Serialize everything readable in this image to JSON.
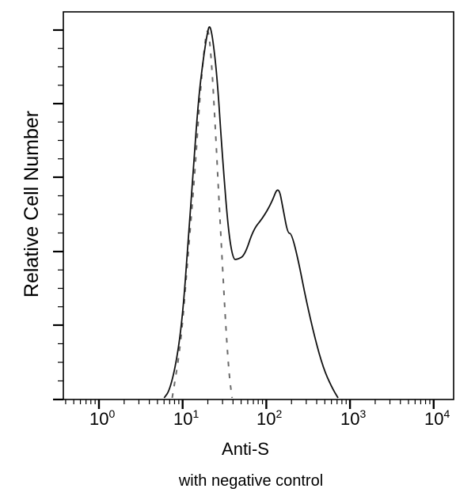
{
  "chart_data": {
    "type": "line",
    "title": "",
    "subtitle": "with negative control",
    "xlabel": "Anti-S",
    "ylabel": "Relative Cell Number",
    "x_scale": "log",
    "xlim": [
      0.4,
      12000
    ],
    "x_ticks": [
      {
        "base": "10",
        "exp": "0",
        "value": 1
      },
      {
        "base": "10",
        "exp": "1",
        "value": 10
      },
      {
        "base": "10",
        "exp": "2",
        "value": 100
      },
      {
        "base": "10",
        "exp": "3",
        "value": 1000
      },
      {
        "base": "10",
        "exp": "4",
        "value": 10000
      }
    ],
    "y_ticks_labeled": false,
    "ylim": [
      0,
      100
    ],
    "grid": false,
    "legend": null,
    "series": [
      {
        "name": "Anti-S",
        "style": "solid",
        "color": "#000000",
        "points": [
          [
            6.0,
            0
          ],
          [
            7.0,
            2
          ],
          [
            8.5,
            10
          ],
          [
            10.0,
            22
          ],
          [
            11.5,
            40
          ],
          [
            13.5,
            62
          ],
          [
            15.5,
            80
          ],
          [
            17.5,
            90
          ],
          [
            19.5,
            97
          ],
          [
            21.0,
            100
          ],
          [
            23.0,
            96
          ],
          [
            26.0,
            85
          ],
          [
            30.0,
            64
          ],
          [
            35.0,
            45
          ],
          [
            40.0,
            37
          ],
          [
            45.0,
            37
          ],
          [
            55.0,
            38
          ],
          [
            70.0,
            45
          ],
          [
            90.0,
            48
          ],
          [
            115.0,
            52
          ],
          [
            140.0,
            57
          ],
          [
            160.0,
            50
          ],
          [
            180.0,
            44
          ],
          [
            200.0,
            44
          ],
          [
            240.0,
            37
          ],
          [
            300.0,
            26
          ],
          [
            380.0,
            16
          ],
          [
            480.0,
            8
          ],
          [
            600.0,
            3
          ],
          [
            720.0,
            0
          ]
        ]
      },
      {
        "name": "Negative control",
        "style": "dashed",
        "color": "#555555",
        "points": [
          [
            7.5,
            0
          ],
          [
            9.5,
            14
          ],
          [
            11.5,
            37
          ],
          [
            14.0,
            60
          ],
          [
            16.0,
            80
          ],
          [
            18.0,
            93
          ],
          [
            20.0,
            100
          ],
          [
            22.0,
            91
          ],
          [
            24.5,
            73
          ],
          [
            27.0,
            54
          ],
          [
            30.0,
            35
          ],
          [
            33.0,
            18
          ],
          [
            36.0,
            6
          ],
          [
            39.0,
            0
          ]
        ]
      }
    ]
  },
  "labels": {
    "xlabel": "Anti-S",
    "ylabel": "Relative Cell Number",
    "caption": "with negative control",
    "xticks": [
      {
        "base": "10",
        "exp": "0"
      },
      {
        "base": "10",
        "exp": "1"
      },
      {
        "base": "10",
        "exp": "2"
      },
      {
        "base": "10",
        "exp": "3"
      },
      {
        "base": "10",
        "exp": "4"
      }
    ]
  },
  "colors": {
    "axis": "#000000",
    "solid_series": "#111111",
    "dashed_series": "#6a6a6a",
    "background": "#ffffff"
  }
}
